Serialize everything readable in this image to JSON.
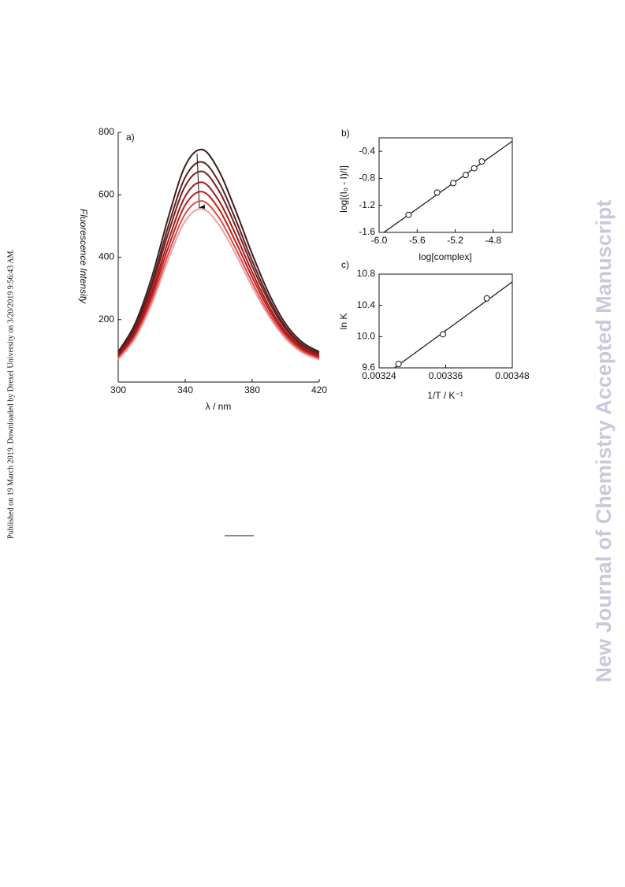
{
  "side_note": "Published on 19 March 2019. Downloaded by Drexel University on 3/20/2019 9:56:43 AM.",
  "watermark": "New Journal of Chemistry Accepted Manuscript",
  "chart_data": [
    {
      "type": "line",
      "panel": "a)",
      "xlabel": "λ / nm",
      "ylabel": "Fluorescence Intensity",
      "x": [
        300,
        310,
        320,
        330,
        340,
        350,
        360,
        370,
        380,
        390,
        400,
        410,
        420
      ],
      "xlim": [
        300,
        420
      ],
      "xticks": [
        300,
        340,
        380,
        420
      ],
      "ylim": [
        0,
        800
      ],
      "yticks": [
        200,
        400,
        600,
        800
      ],
      "series": [
        {
          "color": "#3b1d1d",
          "values": [
            97,
            186,
            335,
            529,
            693,
            745,
            678,
            551,
            410,
            283,
            186,
            127,
            97
          ]
        },
        {
          "color": "#5a1f1f",
          "values": [
            92,
            176,
            317,
            501,
            656,
            705,
            642,
            522,
            388,
            268,
            176,
            120,
            92
          ]
        },
        {
          "color": "#7a1c1c",
          "values": [
            88,
            169,
            304,
            479,
            628,
            675,
            614,
            500,
            371,
            257,
            169,
            115,
            88
          ]
        },
        {
          "color": "#9e1a1a",
          "values": [
            83,
            160,
            288,
            454,
            595,
            640,
            582,
            474,
            352,
            243,
            160,
            109,
            83
          ]
        },
        {
          "color": "#c41a1a",
          "values": [
            79,
            153,
            275,
            433,
            567,
            610,
            555,
            451,
            336,
            232,
            153,
            104,
            79
          ]
        },
        {
          "color": "#e04a4a",
          "values": [
            75,
            145,
            261,
            412,
            539,
            580,
            528,
            429,
            319,
            220,
            145,
            99,
            75
          ]
        },
        {
          "color": "#eea0a0",
          "values": [
            72,
            139,
            250,
            394,
            516,
            555,
            505,
            411,
            305,
            211,
            139,
            94,
            72
          ]
        }
      ]
    },
    {
      "type": "scatter",
      "panel": "b)",
      "xlabel": "log[complex]",
      "ylabel": "log[(I₀ - I)/I]",
      "xlim": [
        -6.0,
        -4.6
      ],
      "xticks": [
        {
          "value": -6.0,
          "label": "-6.0"
        },
        -5.6,
        -5.2,
        -4.8
      ],
      "ylim": [
        -1.6,
        -0.2
      ],
      "yticks": [
        -1.6,
        -1.2,
        -0.8,
        -0.4
      ],
      "x": [
        -5.69,
        -5.39,
        -5.22,
        -5.09,
        -5.0,
        -4.92
      ],
      "values": [
        -1.34,
        -1.01,
        -0.87,
        -0.75,
        -0.65,
        -0.55
      ],
      "fit": {
        "x": [
          -5.95,
          -4.6
        ],
        "y": [
          -1.6,
          -0.25
        ]
      }
    },
    {
      "type": "scatter",
      "panel": "c)",
      "xlabel": "1/T / K⁻¹",
      "ylabel": "ln K",
      "xlim": [
        0.00324,
        0.00348
      ],
      "xticks": [
        0.00324,
        0.00336,
        0.00348
      ],
      "ylim": [
        9.6,
        10.8
      ],
      "yticks": [
        9.6,
        {
          "value": 10.0,
          "label": "10.0"
        },
        10.4,
        10.8
      ],
      "x": [
        0.003275,
        0.003355,
        0.003434
      ],
      "values": [
        9.65,
        10.03,
        10.49
      ],
      "fit": {
        "x": [
          0.003268,
          0.00348
        ],
        "y": [
          9.6,
          10.7
        ]
      }
    }
  ]
}
